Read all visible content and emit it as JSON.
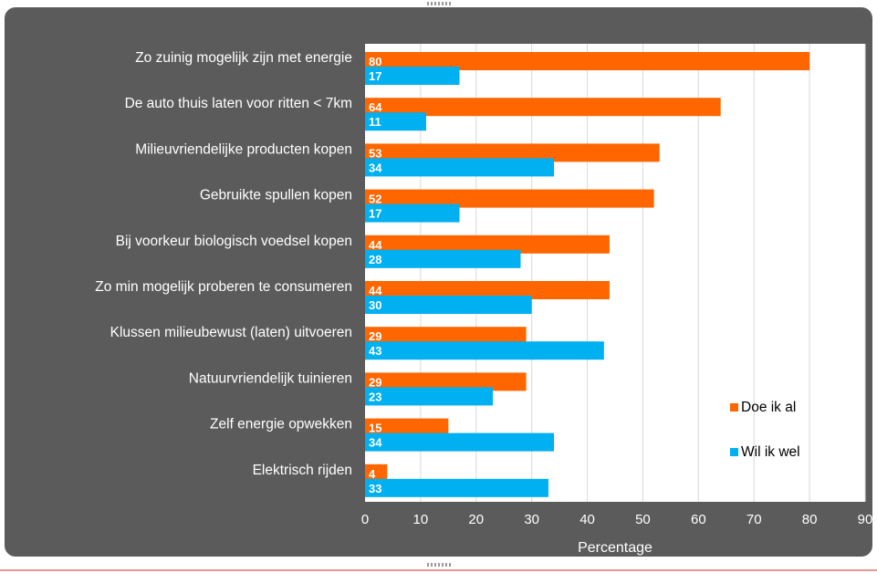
{
  "chart_data": {
    "type": "bar",
    "orientation": "horizontal",
    "title": "",
    "xlabel": "Percentage",
    "ylabel": "",
    "xlim": [
      0,
      90
    ],
    "xticks": [
      0,
      10,
      20,
      30,
      40,
      50,
      60,
      70,
      80,
      90
    ],
    "grid": "vertical",
    "legend_position": "bottom-right",
    "categories": [
      "Zo zuinig mogelijk zijn met energie",
      "De auto thuis laten voor ritten < 7km",
      "Milieuvriendelijke producten kopen",
      "Gebruikte spullen kopen",
      "Bij voorkeur biologisch voedsel kopen",
      "Zo min mogelijk proberen te consumeren",
      "Klussen milieubewust (laten) uitvoeren",
      "Natuurvriendelijk tuinieren",
      "Zelf energie opwekken",
      "Elektrisch rijden"
    ],
    "series": [
      {
        "name": "Doe ik al",
        "color": "#ff6600",
        "values": [
          80,
          64,
          53,
          52,
          44,
          44,
          29,
          29,
          15,
          4
        ]
      },
      {
        "name": "Wil ik wel",
        "color": "#00b0f0",
        "values": [
          17,
          11,
          34,
          17,
          28,
          30,
          43,
          23,
          34,
          33
        ]
      }
    ]
  }
}
